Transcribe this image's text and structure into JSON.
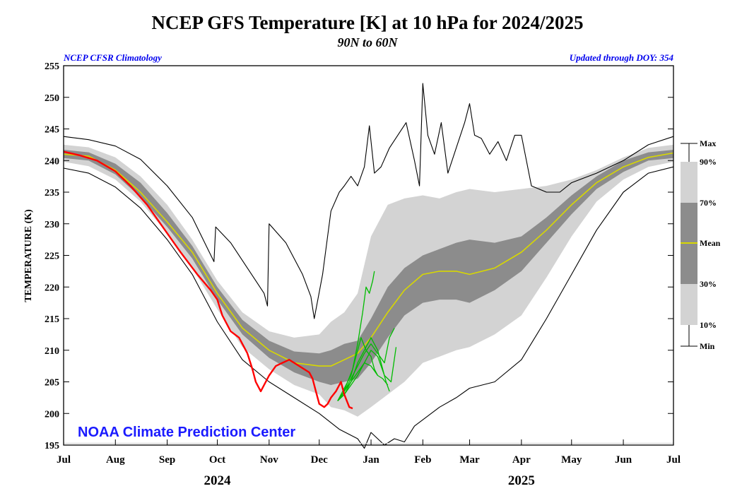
{
  "chart_data": {
    "type": "line",
    "title": "NCEP GFS Temperature [K] at 10 hPa for 2024/2025",
    "subtitle": "90N to 60N",
    "note_left": "NCEP CFSR Climatology",
    "note_right": "Updated through DOY: 354",
    "ylabel": "TEMPERATURE (K)",
    "ylim": [
      195,
      255
    ],
    "yticks": [
      195,
      200,
      205,
      210,
      215,
      220,
      225,
      230,
      235,
      240,
      245,
      250,
      255
    ],
    "xlim": [
      0,
      365
    ],
    "months": [
      {
        "label": "Jul",
        "day": 0
      },
      {
        "label": "Aug",
        "day": 31
      },
      {
        "label": "Sep",
        "day": 62
      },
      {
        "label": "Oct",
        "day": 92
      },
      {
        "label": "Nov",
        "day": 123
      },
      {
        "label": "Dec",
        "day": 153
      },
      {
        "label": "Jan",
        "day": 184
      },
      {
        "label": "Feb",
        "day": 215
      },
      {
        "label": "Mar",
        "day": 243
      },
      {
        "label": "Apr",
        "day": 274
      },
      {
        "label": "May",
        "day": 304
      },
      {
        "label": "Jun",
        "day": 335
      },
      {
        "label": "Jul",
        "day": 365
      }
    ],
    "years": [
      {
        "label": "2024",
        "day": 92
      },
      {
        "label": "2025",
        "day": 274
      }
    ],
    "grid": false,
    "legend": {
      "placement": "right",
      "items": [
        "Max",
        "90%",
        "70%",
        "Mean",
        "30%",
        "10%",
        "Min"
      ]
    },
    "brand": "NOAA Climate Prediction Center",
    "colors": {
      "band_10_90": "#d3d3d3",
      "band_30_70": "#8c8c8c",
      "mean": "#d8d800",
      "minmax": "#000000",
      "observed": "#ff0000",
      "forecast": "#00bb00",
      "brand": "#1a1aff",
      "notes": "#0000ee"
    },
    "series": [
      {
        "name": "Mean",
        "x": [
          0,
          15,
          31,
          46,
          62,
          77,
          92,
          107,
          123,
          138,
          153,
          160,
          168,
          176,
          184,
          194,
          204,
          215,
          225,
          235,
          243,
          258,
          274,
          289,
          304,
          319,
          335,
          350,
          365
        ],
        "values": [
          241.0,
          240.7,
          238.5,
          235.0,
          230.3,
          225.5,
          219.0,
          213.5,
          210.0,
          208.0,
          207.5,
          207.5,
          208.5,
          209.5,
          212.0,
          216.0,
          219.5,
          222.0,
          222.5,
          222.5,
          222.0,
          223.0,
          225.5,
          229.0,
          233.0,
          236.5,
          239.0,
          240.5,
          241.2
        ]
      },
      {
        "name": "Max",
        "x": [
          0,
          15,
          31,
          46,
          62,
          77,
          90,
          91,
          100,
          110,
          120,
          122,
          123,
          133,
          143,
          148,
          150,
          155,
          160,
          165,
          168,
          172,
          176,
          180,
          183,
          186,
          190,
          195,
          200,
          205,
          210,
          213,
          215,
          218,
          222,
          226,
          230,
          235,
          240,
          243,
          246,
          250,
          255,
          260,
          265,
          270,
          274,
          280,
          289,
          297,
          304,
          319,
          335,
          350,
          365
        ],
        "values": [
          243.8,
          243.3,
          242.3,
          240.2,
          236.0,
          231.0,
          224.0,
          229.5,
          227.0,
          223.0,
          219.0,
          217.0,
          230.0,
          227.0,
          222.0,
          218.5,
          215.0,
          222.0,
          232.0,
          235.0,
          236.0,
          237.5,
          236.0,
          239.0,
          245.5,
          238.0,
          239.0,
          242.0,
          244.0,
          246.0,
          240.0,
          236.0,
          252.2,
          244.0,
          241.0,
          246.0,
          238.0,
          242.0,
          246.0,
          249.0,
          244.0,
          243.5,
          241.0,
          243.0,
          240.0,
          244.0,
          244.0,
          236.0,
          235.0,
          235.0,
          236.5,
          238.0,
          240.0,
          242.5,
          243.8
        ]
      },
      {
        "name": "Min",
        "x": [
          0,
          15,
          31,
          46,
          62,
          77,
          92,
          107,
          123,
          138,
          153,
          165,
          176,
          180,
          184,
          192,
          198,
          204,
          210,
          215,
          225,
          235,
          243,
          258,
          274,
          289,
          304,
          319,
          335,
          350,
          365
        ],
        "values": [
          238.8,
          238.0,
          235.8,
          232.5,
          227.5,
          222.0,
          214.5,
          208.5,
          205.0,
          202.5,
          200.0,
          197.5,
          196.0,
          194.5,
          197.0,
          195.0,
          196.0,
          195.5,
          198.0,
          199.0,
          201.0,
          202.5,
          204.0,
          205.0,
          208.5,
          215.0,
          222.0,
          229.0,
          235.0,
          238.0,
          239.0
        ]
      },
      {
        "name": "Observed",
        "x": [
          0,
          10,
          20,
          31,
          40,
          50,
          62,
          70,
          80,
          88,
          92,
          95,
          100,
          105,
          110,
          113,
          115,
          118,
          120,
          123,
          127,
          131,
          135,
          138,
          141,
          144,
          147,
          149,
          151,
          153,
          156,
          158,
          160,
          163,
          166,
          168,
          171,
          173
        ],
        "values": [
          241.4,
          240.8,
          240.0,
          238.3,
          236.0,
          233.0,
          228.5,
          225.5,
          222.0,
          219.5,
          218.0,
          215.5,
          213.0,
          212.0,
          209.5,
          207.0,
          205.0,
          203.5,
          204.5,
          206.0,
          207.5,
          208.0,
          208.5,
          208.0,
          207.5,
          207.0,
          206.5,
          205.5,
          203.5,
          201.5,
          201.0,
          201.5,
          202.5,
          203.5,
          205.0,
          203.0,
          201.0,
          200.8
        ]
      },
      {
        "name": "Forecast 1",
        "x": [
          164,
          167,
          170,
          173,
          176,
          179,
          181,
          183,
          185,
          186
        ],
        "values": [
          202,
          203,
          205,
          207,
          211,
          216,
          220,
          219,
          221,
          222.5
        ]
      },
      {
        "name": "Forecast 2",
        "x": [
          164,
          168,
          172,
          175,
          178,
          181,
          184,
          186,
          188
        ],
        "values": [
          202,
          204,
          206,
          209,
          212,
          210,
          209,
          207,
          206
        ]
      },
      {
        "name": "Forecast 3",
        "x": [
          164,
          168,
          172,
          176,
          180,
          184,
          188,
          191,
          193,
          195
        ],
        "values": [
          202,
          203.5,
          205,
          208,
          210,
          212,
          210,
          207,
          205,
          203.5
        ]
      },
      {
        "name": "Forecast 4",
        "x": [
          164,
          168,
          172,
          176,
          180,
          184,
          188,
          192,
          196,
          199
        ],
        "values": [
          202,
          203,
          204.5,
          206,
          208,
          210,
          209,
          206,
          205,
          210.5
        ]
      },
      {
        "name": "Forecast 5",
        "x": [
          164,
          168,
          172,
          176,
          180,
          184,
          188,
          192,
          195,
          198
        ],
        "values": [
          202,
          203.5,
          205.5,
          207.5,
          209.5,
          211,
          209.5,
          208,
          212,
          213.5
        ]
      },
      {
        "name": "Forecast 6",
        "x": [
          164,
          168,
          172,
          176,
          180,
          184,
          188,
          191,
          194
        ],
        "values": [
          202,
          203,
          205,
          206.5,
          208,
          207.5,
          206,
          205.5,
          204.5
        ]
      }
    ],
    "bands": [
      {
        "name": "10-90",
        "x": [
          0,
          15,
          31,
          46,
          62,
          77,
          92,
          107,
          123,
          138,
          153,
          160,
          168,
          176,
          184,
          194,
          204,
          215,
          225,
          235,
          243,
          258,
          274,
          289,
          304,
          319,
          335,
          350,
          365
        ],
        "upper": [
          242.5,
          242.1,
          240.5,
          237.5,
          233.0,
          227.5,
          221.0,
          216.0,
          213.0,
          212.0,
          212.5,
          214.5,
          216.0,
          219.0,
          228.0,
          233.0,
          234.0,
          234.5,
          234.0,
          235.0,
          235.5,
          235.0,
          235.5,
          236.0,
          237.0,
          238.5,
          240.5,
          242.0,
          242.5
        ],
        "lower": [
          239.8,
          239.1,
          237.0,
          233.5,
          228.5,
          223.0,
          216.5,
          210.5,
          207.0,
          204.5,
          203.0,
          201.0,
          200.5,
          199.5,
          201.0,
          203.0,
          205.0,
          208.0,
          209.0,
          210.0,
          210.5,
          212.5,
          215.5,
          221.5,
          228.0,
          233.5,
          237.0,
          239.0,
          239.8
        ]
      },
      {
        "name": "30-70",
        "x": [
          0,
          15,
          31,
          46,
          62,
          77,
          92,
          107,
          123,
          138,
          153,
          160,
          168,
          176,
          184,
          194,
          204,
          215,
          225,
          235,
          243,
          258,
          274,
          289,
          304,
          319,
          335,
          350,
          365
        ],
        "upper": [
          241.7,
          241.3,
          239.5,
          236.5,
          231.7,
          226.5,
          220.0,
          214.8,
          211.5,
          209.8,
          209.5,
          210.0,
          211.0,
          211.5,
          215.0,
          220.0,
          223.0,
          225.0,
          226.0,
          227.0,
          227.5,
          227.0,
          228.0,
          231.0,
          234.5,
          237.5,
          240.0,
          241.3,
          241.7
        ],
        "lower": [
          240.4,
          240.0,
          237.8,
          234.2,
          229.5,
          224.5,
          218.0,
          212.5,
          208.8,
          206.5,
          205.0,
          204.5,
          205.0,
          205.5,
          208.0,
          212.0,
          215.5,
          217.5,
          218.0,
          218.0,
          217.5,
          219.5,
          222.5,
          227.0,
          231.5,
          235.5,
          238.2,
          240.0,
          240.4
        ]
      }
    ]
  }
}
